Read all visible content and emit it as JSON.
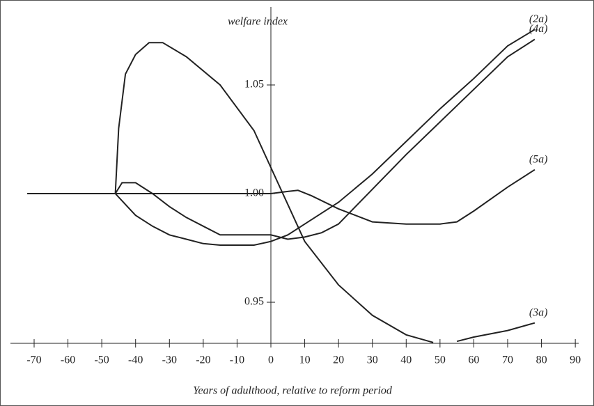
{
  "chart_data": {
    "type": "line",
    "x_label": "Years of adulthood, relative to reform period",
    "y_label": "welfare index",
    "xlim": [
      -77,
      91
    ],
    "ylim": [
      0.9311,
      1.0859
    ],
    "xticks": [
      -70,
      -60,
      -50,
      -40,
      -30,
      -20,
      -10,
      0,
      10,
      20,
      30,
      40,
      50,
      60,
      70,
      80,
      90
    ],
    "yticks": [
      0.95,
      {
        "value": 1.0,
        "label": "1.00"
      },
      1.05
    ],
    "grid": false,
    "series": [
      {
        "name": "(2a)",
        "color": "#222222",
        "x": [
          -72,
          -46,
          -43,
          -40,
          -35,
          -30,
          -25,
          -20,
          -15,
          -5,
          0,
          5,
          10,
          20,
          30,
          40,
          50,
          60,
          70,
          78
        ],
        "values": [
          1.0,
          1.0,
          0.995,
          0.99,
          0.985,
          0.981,
          0.979,
          0.977,
          0.9763,
          0.9763,
          0.978,
          0.981,
          0.986,
          0.996,
          1.009,
          1.024,
          1.039,
          1.053,
          1.068,
          1.0755
        ]
      },
      {
        "name": "(4a)",
        "color": "#222222",
        "x": [
          -72,
          -46,
          -44,
          -40,
          -35,
          -30,
          -25,
          -20,
          -15,
          0,
          5,
          10,
          15,
          20,
          30,
          40,
          50,
          60,
          70,
          78
        ],
        "values": [
          1.0,
          1.0,
          1.005,
          1.005,
          1.0,
          0.994,
          0.989,
          0.985,
          0.981,
          0.981,
          0.979,
          0.98,
          0.982,
          0.986,
          1.002,
          1.018,
          1.033,
          1.048,
          1.063,
          1.071
        ]
      },
      {
        "name": "(5a)",
        "color": "#222222",
        "x": [
          -72,
          0,
          5,
          8,
          12,
          20,
          30,
          40,
          50,
          55,
          60,
          70,
          78
        ],
        "values": [
          1.0,
          1.0,
          1.001,
          1.0015,
          0.999,
          0.993,
          0.987,
          0.986,
          0.986,
          0.987,
          0.992,
          1.003,
          1.011
        ]
      },
      {
        "name": "(3a)",
        "color": "#222222",
        "x": [
          -72,
          -46,
          -45,
          -43,
          -40,
          -36,
          -32,
          -25,
          -15,
          -5,
          0,
          5,
          10,
          20,
          30,
          40,
          48,
          51,
          55,
          60,
          70,
          78
        ],
        "values": [
          1.0,
          1.0,
          1.03,
          1.055,
          1.064,
          1.0695,
          1.0695,
          1.063,
          1.05,
          1.029,
          1.012,
          0.995,
          0.978,
          0.958,
          0.944,
          0.935,
          0.9315,
          null,
          0.932,
          0.934,
          0.937,
          0.9405
        ]
      }
    ]
  }
}
